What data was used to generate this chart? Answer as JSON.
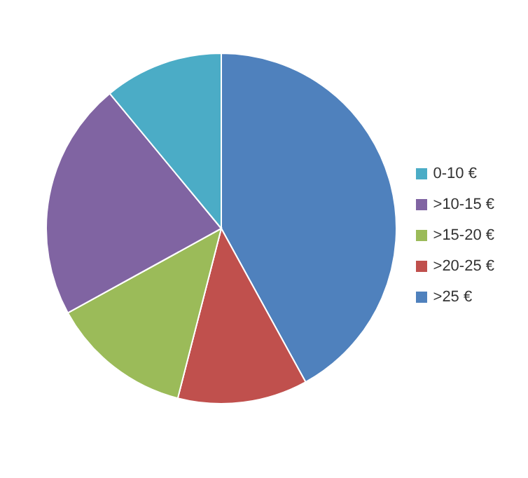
{
  "chart_data": {
    "type": "pie",
    "categories": [
      ">25 €",
      ">20-25 €",
      ">15-20 €",
      ">10-15 €",
      "0-10 €"
    ],
    "values": [
      42,
      12,
      13,
      22,
      11
    ],
    "colors": [
      "#4f81bd",
      "#c0504d",
      "#9bbb59",
      "#8064a2",
      "#4bacc6"
    ],
    "legend": "right"
  }
}
